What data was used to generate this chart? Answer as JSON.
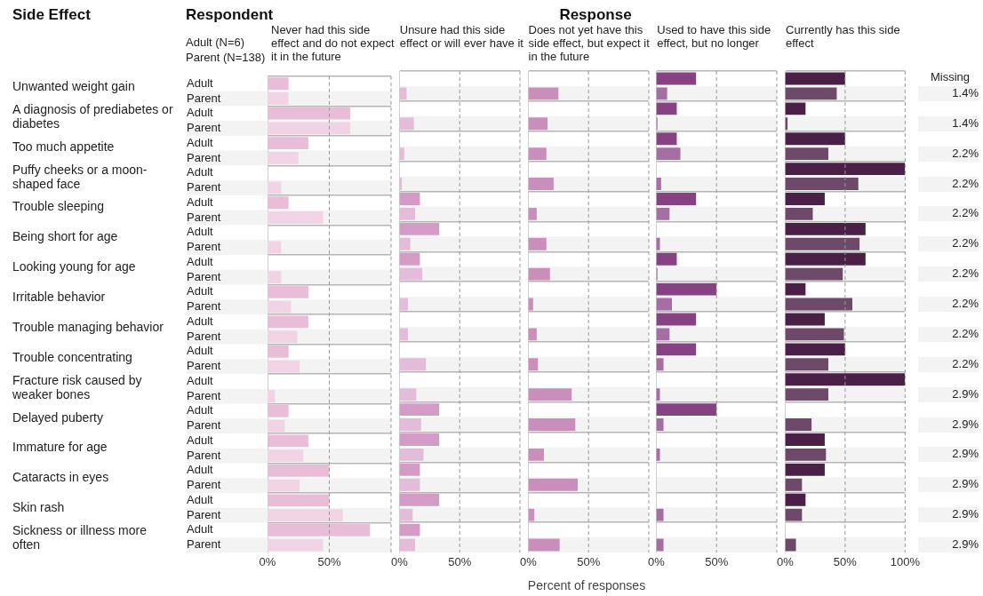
{
  "chart_data": [
    {
      "type": "other",
      "title": "Side Effect",
      "annotations": [
        "Unwanted weight gain",
        "A diagnosis of prediabetes or diabetes",
        "Too much appetite",
        "Puffy cheeks or a moon-shaped face",
        "Trouble sleeping",
        "Being short for age",
        "Looking young for age",
        "Irritable behavior",
        "Trouble managing behavior",
        "Trouble concentrating",
        "Fracture risk caused by weaker bones",
        "Delayed puberty",
        "Immature for age",
        "Cataracts in eyes",
        "Skin rash",
        "Sickness or illness more often"
      ]
    },
    {
      "type": "other",
      "title": "Respondent",
      "annotations": [
        "Adult (N=6)",
        "Parent (N=138)"
      ]
    },
    {
      "type": "other",
      "title": "Response"
    },
    {
      "type": "bar",
      "orientation": "horizontal",
      "title": "Never had this side effect and do not expect it in the future",
      "categories": [
        "Adult",
        "Parent",
        "Adult",
        "Parent",
        "Adult",
        "Parent",
        "Adult",
        "Parent",
        "Adult",
        "Parent",
        "Adult",
        "Parent",
        "Adult",
        "Parent",
        "Adult",
        "Parent",
        "Adult",
        "Parent",
        "Adult",
        "Parent",
        "Adult",
        "Parent",
        "Adult",
        "Parent",
        "Adult",
        "Parent",
        "Adult",
        "Parent",
        "Adult",
        "Parent",
        "Adult",
        "Parent"
      ],
      "values": [
        17,
        17,
        67,
        67,
        33,
        25,
        0,
        11,
        17,
        45,
        0,
        11,
        0,
        11,
        33,
        19,
        33,
        24,
        17,
        26,
        0,
        6,
        17,
        14,
        33,
        29,
        50,
        26,
        50,
        61,
        83,
        45
      ],
      "colors": [
        "#e9bcd8",
        "#f1d3e6",
        "#e9bcd8",
        "#f1d3e6",
        "#e9bcd8",
        "#f1d3e6",
        "#e9bcd8",
        "#f1d3e6",
        "#e9bcd8",
        "#f1d3e6",
        "#e9bcd8",
        "#f1d3e6",
        "#e9bcd8",
        "#f1d3e6",
        "#e9bcd8",
        "#f1d3e6",
        "#e9bcd8",
        "#f1d3e6",
        "#e9bcd8",
        "#f1d3e6",
        "#e9bcd8",
        "#f1d3e6",
        "#e9bcd8",
        "#f1d3e6",
        "#e9bcd8",
        "#f1d3e6",
        "#e9bcd8",
        "#f1d3e6",
        "#e9bcd8",
        "#f1d3e6",
        "#e9bcd8",
        "#f1d3e6"
      ],
      "xlim": [
        0,
        100
      ],
      "xticks": [
        {
          "value": 0,
          "label": "0%"
        },
        {
          "value": 50,
          "label": "50%"
        },
        {
          "value": 100,
          "label": null
        }
      ],
      "grid": "y",
      "ref_lines": [
        {
          "axis": "x",
          "value": 50,
          "color": "#999999",
          "line_style": "dashed"
        },
        {
          "axis": "x",
          "value": 100,
          "color": "#999999",
          "line_style": "dashed"
        }
      ]
    },
    {
      "type": "bar",
      "orientation": "horizontal",
      "title": "Unsure had this side effect or will ever have it",
      "categories": [
        null,
        null,
        null,
        null,
        null,
        null,
        null,
        null,
        null,
        null,
        null,
        null,
        null,
        null,
        null,
        null,
        null,
        null,
        null,
        null,
        null,
        null,
        null,
        null,
        null,
        null,
        null,
        null,
        null,
        null,
        null,
        null
      ],
      "values": [
        0,
        6,
        0,
        12,
        0,
        4,
        0,
        2,
        17,
        13,
        33,
        9,
        17,
        19,
        0,
        7,
        0,
        7,
        0,
        22,
        0,
        14,
        33,
        18,
        33,
        20,
        17,
        17,
        33,
        11,
        17,
        13
      ],
      "colors": [
        "#d49bc6",
        "#e3bcd9",
        "#d49bc6",
        "#e3bcd9",
        "#d49bc6",
        "#e3bcd9",
        "#d49bc6",
        "#e3bcd9",
        "#d49bc6",
        "#e3bcd9",
        "#d49bc6",
        "#e3bcd9",
        "#d49bc6",
        "#e3bcd9",
        "#d49bc6",
        "#e3bcd9",
        "#d49bc6",
        "#e3bcd9",
        "#d49bc6",
        "#e3bcd9",
        "#d49bc6",
        "#e3bcd9",
        "#d49bc6",
        "#e3bcd9",
        "#d49bc6",
        "#e3bcd9",
        "#d49bc6",
        "#e3bcd9",
        "#d49bc6",
        "#e3bcd9",
        "#d49bc6",
        "#e3bcd9"
      ],
      "xlim": [
        0,
        100
      ],
      "xticks": [
        {
          "value": 0,
          "label": "0%"
        },
        {
          "value": 50,
          "label": "50%"
        },
        {
          "value": 100,
          "label": null
        }
      ],
      "grid": "y",
      "tick_labels": "x",
      "ref_lines": [
        {
          "axis": "x",
          "value": 50,
          "color": "#999999",
          "line_style": "dashed"
        },
        {
          "axis": "x",
          "value": 100,
          "color": "#999999",
          "line_style": "dashed"
        }
      ]
    },
    {
      "type": "bar",
      "orientation": "horizontal",
      "title": "Does not yet have this side effect, but expect it in the future",
      "xlabel": "Percent of responses",
      "categories": [
        null,
        null,
        null,
        null,
        null,
        null,
        null,
        null,
        null,
        null,
        null,
        null,
        null,
        null,
        null,
        null,
        null,
        null,
        null,
        null,
        null,
        null,
        null,
        null,
        null,
        null,
        null,
        null,
        null,
        null,
        null,
        null
      ],
      "values": [
        0,
        25,
        0,
        16,
        0,
        15,
        0,
        21,
        0,
        7,
        0,
        15,
        0,
        18,
        0,
        4,
        0,
        7,
        0,
        8,
        0,
        36,
        0,
        39,
        0,
        13,
        0,
        41,
        0,
        5,
        0,
        26
      ],
      "colors": [
        "#b0649c",
        "#c98fba",
        "#b0649c",
        "#c98fba",
        "#b0649c",
        "#c98fba",
        "#b0649c",
        "#c98fba",
        "#b0649c",
        "#c98fba",
        "#b0649c",
        "#c98fba",
        "#b0649c",
        "#c98fba",
        "#b0649c",
        "#c98fba",
        "#b0649c",
        "#c98fba",
        "#b0649c",
        "#c98fba",
        "#b0649c",
        "#c98fba",
        "#b0649c",
        "#c98fba",
        "#b0649c",
        "#c98fba",
        "#b0649c",
        "#c98fba",
        "#b0649c",
        "#c98fba",
        "#b0649c",
        "#c98fba"
      ],
      "xlim": [
        0,
        100
      ],
      "xticks": [
        {
          "value": 0,
          "label": "0%"
        },
        {
          "value": 50,
          "label": "50%"
        },
        {
          "value": 100,
          "label": null
        }
      ],
      "grid": "y",
      "tick_labels": "x",
      "ref_lines": [
        {
          "axis": "x",
          "value": 50,
          "color": "#999999",
          "line_style": "dashed"
        },
        {
          "axis": "x",
          "value": 100,
          "color": "#999999",
          "line_style": "dashed"
        }
      ]
    },
    {
      "type": "bar",
      "orientation": "horizontal",
      "title": "Used to have this side effect, but no longer",
      "categories": [
        null,
        null,
        null,
        null,
        null,
        null,
        null,
        null,
        null,
        null,
        null,
        null,
        null,
        null,
        null,
        null,
        null,
        null,
        null,
        null,
        null,
        null,
        null,
        null,
        null,
        null,
        null,
        null,
        null,
        null,
        null,
        null
      ],
      "values": [
        33,
        9,
        17,
        1,
        17,
        20,
        0,
        4,
        33,
        11,
        0,
        3,
        17,
        1,
        50,
        13,
        33,
        11,
        33,
        6,
        0,
        3,
        50,
        6,
        0,
        3,
        0,
        0,
        0,
        6,
        0,
        6
      ],
      "colors": [
        "#874283",
        "#a66fa3",
        "#874283",
        "#a66fa3",
        "#874283",
        "#a66fa3",
        "#874283",
        "#a66fa3",
        "#874283",
        "#a66fa3",
        "#874283",
        "#a66fa3",
        "#874283",
        "#a66fa3",
        "#874283",
        "#a66fa3",
        "#874283",
        "#a66fa3",
        "#874283",
        "#a66fa3",
        "#874283",
        "#a66fa3",
        "#874283",
        "#a66fa3",
        "#874283",
        "#a66fa3",
        "#874283",
        "#a66fa3",
        "#874283",
        "#a66fa3",
        "#874283",
        "#a66fa3"
      ],
      "xlim": [
        0,
        100
      ],
      "xticks": [
        {
          "value": 0,
          "label": "0%"
        },
        {
          "value": 50,
          "label": "50%"
        },
        {
          "value": 100,
          "label": null
        }
      ],
      "grid": "y",
      "tick_labels": "x",
      "ref_lines": [
        {
          "axis": "x",
          "value": 50,
          "color": "#999999",
          "line_style": "dashed"
        },
        {
          "axis": "x",
          "value": 100,
          "color": "#999999",
          "line_style": "dashed"
        }
      ]
    },
    {
      "type": "bar",
      "orientation": "horizontal",
      "title": "Currently has this side effect",
      "categories": [
        null,
        null,
        null,
        null,
        null,
        null,
        null,
        null,
        null,
        null,
        null,
        null,
        null,
        null,
        null,
        null,
        null,
        null,
        null,
        null,
        null,
        null,
        null,
        null,
        null,
        null,
        null,
        null,
        null,
        null,
        null,
        null
      ],
      "values": [
        50,
        43,
        17,
        2,
        50,
        36,
        100,
        61,
        33,
        23,
        67,
        62,
        67,
        48,
        17,
        56,
        33,
        49,
        50,
        36,
        100,
        36,
        0,
        22,
        33,
        34,
        33,
        14,
        17,
        14,
        0,
        9
      ],
      "colors": [
        "#4b2046",
        "#6e4a6a",
        "#4b2046",
        "#6e4a6a",
        "#4b2046",
        "#6e4a6a",
        "#4b2046",
        "#6e4a6a",
        "#4b2046",
        "#6e4a6a",
        "#4b2046",
        "#6e4a6a",
        "#4b2046",
        "#6e4a6a",
        "#4b2046",
        "#6e4a6a",
        "#4b2046",
        "#6e4a6a",
        "#4b2046",
        "#6e4a6a",
        "#4b2046",
        "#6e4a6a",
        "#4b2046",
        "#6e4a6a",
        "#4b2046",
        "#6e4a6a",
        "#4b2046",
        "#6e4a6a",
        "#4b2046",
        "#6e4a6a",
        "#4b2046",
        "#6e4a6a"
      ],
      "xlim": [
        0,
        100
      ],
      "xticks": [
        {
          "value": 0,
          "label": "0%"
        },
        {
          "value": 50,
          "label": "50%"
        },
        {
          "value": 100,
          "label": "100%"
        }
      ],
      "grid": "y",
      "tick_labels": "x",
      "ref_lines": [
        {
          "axis": "x",
          "value": 50,
          "color": "#999999",
          "line_style": "dashed"
        },
        {
          "axis": "x",
          "value": 100,
          "color": "#999999",
          "line_style": "dashed"
        }
      ]
    },
    {
      "type": "other",
      "title": "Missing",
      "annotations": [
        "1.4%",
        "1.4%",
        "2.2%",
        "2.2%",
        "2.2%",
        "2.2%",
        "2.2%",
        "2.2%",
        "2.2%",
        "2.2%",
        "2.9%",
        "2.9%",
        "2.9%",
        "2.9%",
        "2.9%",
        "2.9%"
      ]
    }
  ]
}
